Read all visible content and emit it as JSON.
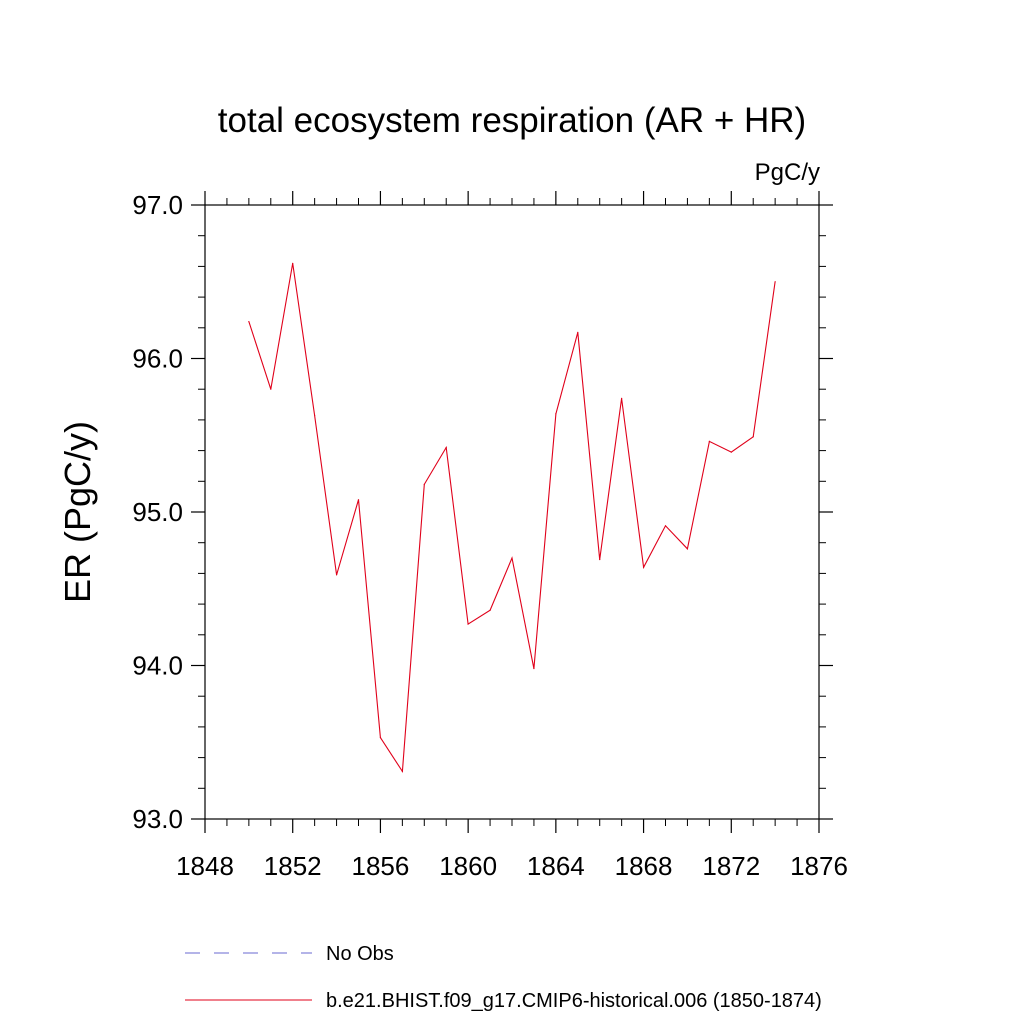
{
  "chart_data": {
    "type": "line",
    "title": "total ecosystem respiration (AR + HR)",
    "units": "PgC/y",
    "ylabel": "ER  (PgC/y)",
    "xlabel": "",
    "xlim": [
      1848,
      1876
    ],
    "ylim": [
      93.0,
      97.0
    ],
    "x_ticks": [
      "1848",
      "1852",
      "1856",
      "1860",
      "1864",
      "1868",
      "1872",
      "1876"
    ],
    "y_ticks": [
      "93.0",
      "94.0",
      "95.0",
      "96.0",
      "97.0"
    ],
    "grid": false,
    "series": [
      {
        "name": "b.e21.BHIST.f09_g17.CMIP6-historical.006 (1850-1874)",
        "color": "#e0001a",
        "style": "solid",
        "x": [
          1850,
          1851,
          1852,
          1853,
          1854,
          1855,
          1856,
          1857,
          1858,
          1859,
          1860,
          1861,
          1862,
          1863,
          1864,
          1865,
          1866,
          1867,
          1868,
          1869,
          1870,
          1871,
          1872,
          1873,
          1874
        ],
        "values": [
          96.24,
          95.8,
          96.62,
          95.63,
          94.59,
          95.08,
          93.53,
          93.31,
          95.18,
          95.42,
          94.27,
          94.36,
          94.7,
          93.98,
          95.64,
          96.17,
          94.69,
          95.74,
          94.64,
          94.91,
          94.76,
          95.46,
          95.39,
          95.49,
          96.5
        ]
      }
    ],
    "legend": [
      {
        "label": "No Obs",
        "color": "#6a6ad0",
        "style": "dashed"
      },
      {
        "label": "b.e21.BHIST.f09_g17.CMIP6-historical.006 (1850-1874)",
        "color": "#e0001a",
        "style": "solid"
      }
    ]
  }
}
